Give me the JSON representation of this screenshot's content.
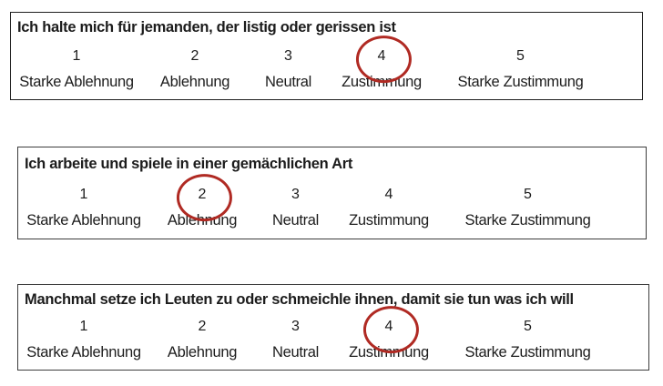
{
  "form": {
    "language": "de",
    "scale_options": [
      {
        "value": "1",
        "label": "Starke Ablehnung"
      },
      {
        "value": "2",
        "label": "Ablehnung"
      },
      {
        "value": "3",
        "label": "Neutral"
      },
      {
        "value": "4",
        "label": "Zustimmung"
      },
      {
        "value": "5",
        "label": "Starke Zustimmung"
      }
    ],
    "questions": [
      {
        "statement": "Ich halte mich für jemanden, der listig oder gerissen ist",
        "selected_value": "4",
        "selected_label": "Zustimmung"
      },
      {
        "statement": "Ich arbeite und spiele in einer gemächlichen Art",
        "selected_value": "2",
        "selected_label": "Ablehnung"
      },
      {
        "statement": "Manchmal setze ich Leuten zu oder schmeichle ihnen, damit sie tun was ich will",
        "selected_value": "4",
        "selected_label": "Zustimmung"
      }
    ],
    "colors": {
      "selection_circle": "#b02a23",
      "box_border": "#2b2b2b",
      "text": "#1c1c1c",
      "background": "#ffffff"
    }
  }
}
